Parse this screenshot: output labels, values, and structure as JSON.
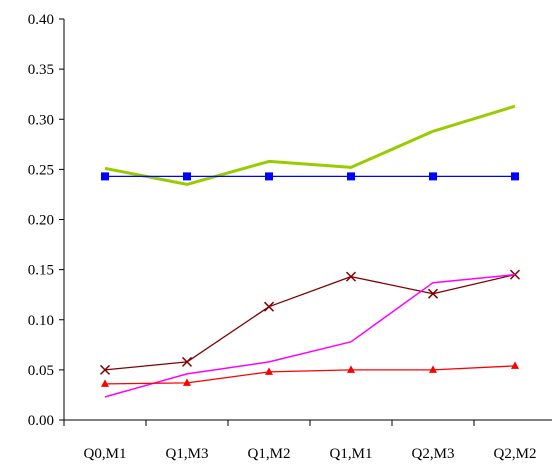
{
  "chart_data": {
    "type": "line",
    "title": "",
    "xlabel": "",
    "ylabel": "",
    "categories": [
      "Q0,M1",
      "Q1,M3",
      "Q1,M2",
      "Q1,M1",
      "Q2,M3",
      "Q2,M2"
    ],
    "ylim": [
      0,
      0.4
    ],
    "yticks": [
      "0.00",
      "0.05",
      "0.10",
      "0.15",
      "0.20",
      "0.25",
      "0.30",
      "0.35",
      "0.40"
    ],
    "grid": false,
    "legend": "none",
    "series": [
      {
        "color": "#99cc00",
        "marker": "none",
        "values": [
          0.251,
          0.235,
          0.258,
          0.252,
          0.288,
          0.313
        ]
      },
      {
        "color": "#0000ff",
        "marker": "square",
        "values": [
          0.243,
          0.243,
          0.243,
          0.243,
          0.243,
          0.243
        ]
      },
      {
        "color": "#800000",
        "marker": "x",
        "values": [
          0.05,
          0.058,
          0.113,
          0.143,
          0.126,
          0.145
        ]
      },
      {
        "color": "#ff00ff",
        "marker": "none",
        "values": [
          0.023,
          0.046,
          0.058,
          0.078,
          0.137,
          0.145
        ]
      },
      {
        "color": "#ff0000",
        "marker": "triangle",
        "values": [
          0.036,
          0.037,
          0.048,
          0.05,
          0.05,
          0.054
        ]
      }
    ]
  }
}
